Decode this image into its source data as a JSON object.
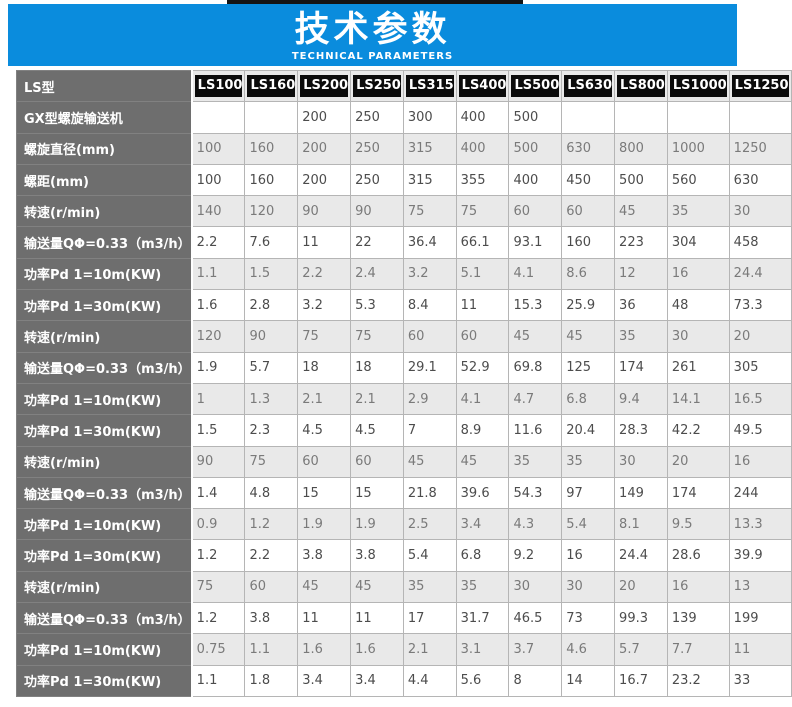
{
  "page": {
    "title": "技术参数",
    "subtitle": "TECHNICAL PARAMETERS"
  },
  "colors": {
    "banner_blue": "#0a8cdd",
    "label_column_bg": "#6e6e6e",
    "alt_row_bg": "#e9e9e9",
    "model_chip_bg": "#0b0b0b",
    "top_bar_black": "#141414"
  },
  "table": {
    "model_row_label": "LS型",
    "models": [
      "LS100",
      "LS160",
      "LS200",
      "LS250",
      "LS315",
      "LS400",
      "LS500",
      "LS630",
      "LS800",
      "LS1000",
      "LS1250"
    ],
    "rows": [
      {
        "label": "GX型螺旋输送机",
        "values": [
          "",
          "",
          "200",
          "250",
          "300",
          "400",
          "500",
          "",
          "",
          "",
          ""
        ]
      },
      {
        "label": "螺旋直径(mm)",
        "values": [
          "100",
          "160",
          "200",
          "250",
          "315",
          "400",
          "500",
          "630",
          "800",
          "1000",
          "1250"
        ]
      },
      {
        "label": "螺距(mm)",
        "values": [
          "100",
          "160",
          "200",
          "250",
          "315",
          "355",
          "400",
          "450",
          "500",
          "560",
          "630"
        ]
      },
      {
        "label": "转速(r/min)",
        "values": [
          "140",
          "120",
          "90",
          "90",
          "75",
          "75",
          "60",
          "60",
          "45",
          "35",
          "30"
        ]
      },
      {
        "label": "输送量QΦ=0.33（m3/h）",
        "values": [
          "2.2",
          "7.6",
          "11",
          "22",
          "36.4",
          "66.1",
          "93.1",
          "160",
          "223",
          "304",
          "458"
        ]
      },
      {
        "label": "功率Pd 1=10m(KW)",
        "values": [
          "1.1",
          "1.5",
          "2.2",
          "2.4",
          "3.2",
          "5.1",
          "4.1",
          "8.6",
          "12",
          "16",
          "24.4"
        ]
      },
      {
        "label": "功率Pd 1=30m(KW)",
        "values": [
          "1.6",
          "2.8",
          "3.2",
          "5.3",
          "8.4",
          "11",
          "15.3",
          "25.9",
          "36",
          "48",
          "73.3"
        ]
      },
      {
        "label": "转速(r/min)",
        "values": [
          "120",
          "90",
          "75",
          "75",
          "60",
          "60",
          "45",
          "45",
          "35",
          "30",
          "20"
        ]
      },
      {
        "label": "输送量QΦ=0.33（m3/h）",
        "values": [
          "1.9",
          "5.7",
          "18",
          "18",
          "29.1",
          "52.9",
          "69.8",
          "125",
          "174",
          "261",
          "305"
        ]
      },
      {
        "label": "功率Pd 1=10m(KW)",
        "values": [
          "1",
          "1.3",
          "2.1",
          "2.1",
          "2.9",
          "4.1",
          "4.7",
          "6.8",
          "9.4",
          "14.1",
          "16.5"
        ]
      },
      {
        "label": "功率Pd 1=30m(KW)",
        "values": [
          "1.5",
          "2.3",
          "4.5",
          "4.5",
          "7",
          "8.9",
          "11.6",
          "20.4",
          "28.3",
          "42.2",
          "49.5"
        ]
      },
      {
        "label": "转速(r/min)",
        "values": [
          "90",
          "75",
          "60",
          "60",
          "45",
          "45",
          "35",
          "35",
          "30",
          "20",
          "16"
        ]
      },
      {
        "label": "输送量QΦ=0.33（m3/h）",
        "values": [
          "1.4",
          "4.8",
          "15",
          "15",
          "21.8",
          "39.6",
          "54.3",
          "97",
          "149",
          "174",
          "244"
        ]
      },
      {
        "label": "功率Pd 1=10m(KW)",
        "values": [
          "0.9",
          "1.2",
          "1.9",
          "1.9",
          "2.5",
          "3.4",
          "4.3",
          "5.4",
          "8.1",
          "9.5",
          "13.3"
        ]
      },
      {
        "label": "功率Pd 1=30m(KW)",
        "values": [
          "1.2",
          "2.2",
          "3.8",
          "3.8",
          "5.4",
          "6.8",
          "9.2",
          "16",
          "24.4",
          "28.6",
          "39.9"
        ]
      },
      {
        "label": "转速(r/min)",
        "values": [
          "75",
          "60",
          "45",
          "45",
          "35",
          "35",
          "30",
          "30",
          "20",
          "16",
          "13"
        ]
      },
      {
        "label": "输送量QΦ=0.33（m3/h）",
        "values": [
          "1.2",
          "3.8",
          "11",
          "11",
          "17",
          "31.7",
          "46.5",
          "73",
          "99.3",
          "139",
          "199"
        ]
      },
      {
        "label": "功率Pd 1=10m(KW)",
        "values": [
          "0.75",
          "1.1",
          "1.6",
          "1.6",
          "2.1",
          "3.1",
          "3.7",
          "4.6",
          "5.7",
          "7.7",
          "11"
        ]
      },
      {
        "label": "功率Pd 1=30m(KW)",
        "values": [
          "1.1",
          "1.8",
          "3.4",
          "3.4",
          "4.4",
          "5.6",
          "8",
          "14",
          "16.7",
          "23.2",
          "33"
        ]
      }
    ]
  }
}
